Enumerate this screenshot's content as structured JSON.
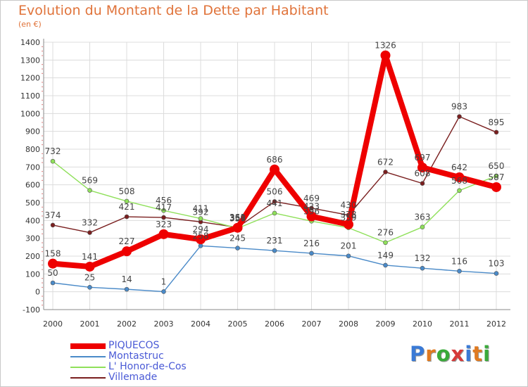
{
  "chart_data": {
    "type": "line",
    "title": "Evolution du Montant de la Dette par Habitant",
    "subtitle": "(en €)",
    "ylim": [
      -100,
      1400
    ],
    "yticks": [
      -100,
      0,
      100,
      200,
      300,
      400,
      500,
      600,
      700,
      800,
      900,
      1000,
      1100,
      1200,
      1300,
      1400
    ],
    "ytick_labels": [
      "-100",
      "0",
      "100",
      "200",
      "300",
      "400",
      "500",
      "600",
      "700",
      "800",
      "900",
      "1000",
      "1100",
      "1200",
      "1300",
      "1400"
    ],
    "categories": [
      "2000",
      "2001",
      "2002",
      "2003",
      "2004",
      "2005",
      "2006",
      "2007",
      "2008",
      "2009",
      "2010",
      "2011",
      "2012"
    ],
    "grid": true,
    "legend_position": "bottom-left",
    "series": [
      {
        "name": "Villemade",
        "color": "#7a1f1f",
        "values": [
          374,
          332,
          421,
          417,
          392,
          361,
          506,
          469,
          430,
          672,
          608,
          983,
          895
        ],
        "labels": [
          "374",
          "332",
          "421",
          "417",
          "392",
          "361",
          "506",
          "469",
          "430",
          "672",
          "608",
          "983",
          "895"
        ]
      },
      {
        "name": "L' Honor-de-Cos",
        "color": "#8fe05a",
        "values": [
          732,
          569,
          508,
          456,
          411,
          356,
          441,
          396,
          359,
          276,
          363,
          568,
          650
        ],
        "labels": [
          "732",
          "569",
          "508",
          "456",
          "411",
          "356",
          "441",
          "396",
          "359",
          "276",
          "363",
          "568",
          "650"
        ]
      },
      {
        "name": "Montastruc",
        "color": "#4a8ac8",
        "values": [
          50,
          25,
          14,
          1,
          258,
          245,
          231,
          216,
          201,
          149,
          132,
          116,
          103
        ],
        "labels": [
          "50",
          "25",
          "14",
          "1",
          "258",
          "245",
          "231",
          "216",
          "201",
          "149",
          "132",
          "116",
          "103"
        ]
      },
      {
        "name": "PIQUECOS",
        "color": "#ee0000",
        "values": [
          158,
          141,
          227,
          323,
          294,
          359,
          686,
          423,
          378,
          1326,
          697,
          642,
          587
        ],
        "labels": [
          "158",
          "141",
          "227",
          "323",
          "294",
          "359",
          "686",
          "423",
          "378",
          "1326",
          "697",
          "642",
          "587"
        ]
      }
    ]
  },
  "legend": {
    "items": [
      {
        "name": "PIQUECOS",
        "color": "#ee0000",
        "thickness": 8
      },
      {
        "name": "Montastruc",
        "color": "#4a8ac8",
        "thickness": 2
      },
      {
        "name": "L' Honor-de-Cos",
        "color": "#8fe05a",
        "thickness": 2
      },
      {
        "name": "Villemade",
        "color": "#7a1f1f",
        "thickness": 2
      }
    ]
  },
  "logo": {
    "letters": [
      "P",
      "r",
      "o",
      "x",
      "i",
      "t",
      "i"
    ],
    "colors": [
      "#3a7ad6",
      "#e07a20",
      "#3aaa3a",
      "#d63a3a",
      "#3a7ad6",
      "#e07a20",
      "#3aaa3a"
    ]
  }
}
